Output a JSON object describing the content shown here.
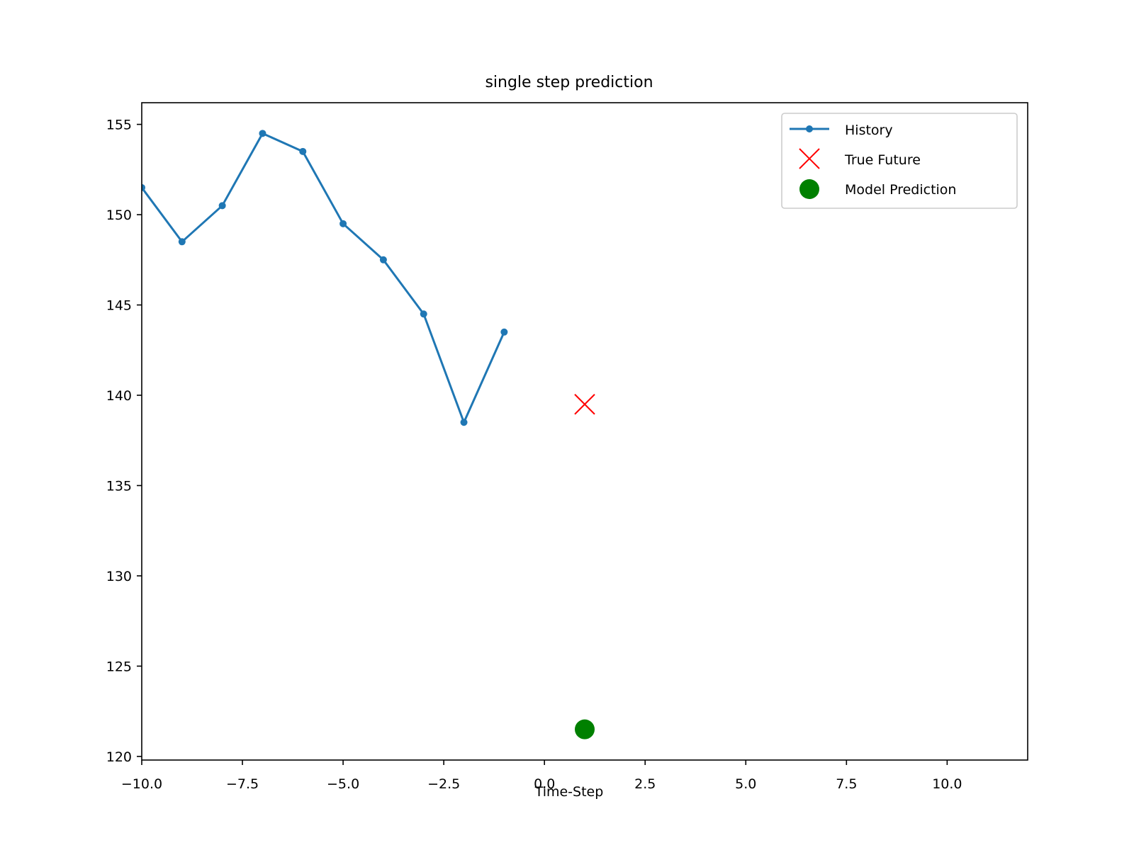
{
  "chart_data": {
    "type": "line",
    "title": "single step prediction",
    "xlabel": "Time-Step",
    "ylabel": "",
    "xlim": [
      -10.0,
      12.0
    ],
    "ylim": [
      119.8,
      156.2
    ],
    "xticks": [
      -10.0,
      -7.5,
      -5.0,
      -2.5,
      0.0,
      2.5,
      5.0,
      7.5,
      10.0
    ],
    "xtick_labels": [
      "−10.0",
      "−7.5",
      "−5.0",
      "−2.5",
      "0.0",
      "2.5",
      "5.0",
      "7.5",
      "10.0"
    ],
    "yticks": [
      120,
      125,
      130,
      135,
      140,
      145,
      150,
      155
    ],
    "ytick_labels": [
      "120",
      "125",
      "130",
      "135",
      "140",
      "145",
      "150",
      "155"
    ],
    "grid": false,
    "legend_position": "top-right",
    "series": [
      {
        "name": "History",
        "kind": "line-with-markers",
        "color": "#1f77b4",
        "x": [
          -10,
          -9,
          -8,
          -7,
          -6,
          -5,
          -4,
          -3,
          -2,
          -1
        ],
        "values": [
          151.5,
          148.5,
          150.5,
          154.5,
          153.5,
          149.5,
          147.5,
          144.5,
          138.5,
          143.5
        ]
      },
      {
        "name": "True Future",
        "kind": "x-marker",
        "color": "#ff0000",
        "x": [
          1
        ],
        "values": [
          139.5
        ]
      },
      {
        "name": "Model Prediction",
        "kind": "circle-marker",
        "color": "#008000",
        "x": [
          1
        ],
        "values": [
          121.5
        ]
      }
    ]
  }
}
